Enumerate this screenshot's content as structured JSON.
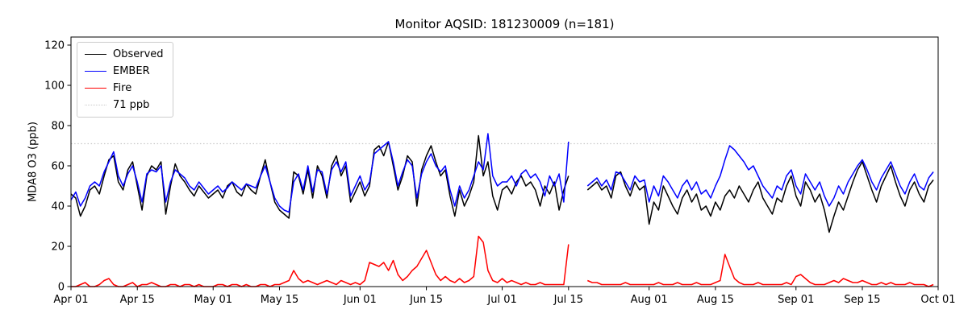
{
  "chart_data": {
    "type": "line",
    "title": "Monitor AQSID: 181230009 (n=181)",
    "xlabel": "",
    "ylabel": "MDA8 O3 (ppb)",
    "ylim": [
      0,
      124
    ],
    "yticks": [
      0,
      20,
      40,
      60,
      80,
      100,
      120
    ],
    "x_unit": "days since Apr 01",
    "xlim_days": [
      0,
      183
    ],
    "xticks": [
      {
        "label": "Apr 01",
        "day": 0
      },
      {
        "label": "Apr 15",
        "day": 14
      },
      {
        "label": "May 01",
        "day": 30
      },
      {
        "label": "May 15",
        "day": 44
      },
      {
        "label": "Jun 01",
        "day": 61
      },
      {
        "label": "Jun 15",
        "day": 75
      },
      {
        "label": "Jul 01",
        "day": 91
      },
      {
        "label": "Jul 15",
        "day": 105
      },
      {
        "label": "Aug 01",
        "day": 122
      },
      {
        "label": "Aug 15",
        "day": 136
      },
      {
        "label": "Sep 01",
        "day": 153
      },
      {
        "label": "Sep 15",
        "day": 167
      },
      {
        "label": "Oct 01",
        "day": 183
      }
    ],
    "grid": false,
    "legend_position": "upper left",
    "threshold": {
      "value": 71,
      "label": "71 ppb",
      "color": "#c8c8c8",
      "style": "dotted"
    },
    "legend": [
      {
        "label": "Observed",
        "color": "#000000",
        "style": "solid"
      },
      {
        "label": "EMBER",
        "color": "#0000ff",
        "style": "solid"
      },
      {
        "label": "Fire",
        "color": "#ff0000",
        "style": "solid"
      },
      {
        "label": "71 ppb",
        "color": "#c8c8c8",
        "style": "dotted"
      }
    ],
    "series": [
      {
        "name": "Observed",
        "color": "#000000",
        "values": [
          46,
          44,
          35,
          40,
          48,
          50,
          46,
          55,
          63,
          65,
          52,
          48,
          58,
          62,
          50,
          38,
          55,
          60,
          58,
          62,
          36,
          50,
          61,
          55,
          52,
          48,
          45,
          50,
          47,
          44,
          46,
          48,
          44,
          50,
          52,
          47,
          45,
          51,
          48,
          46,
          55,
          63,
          52,
          42,
          38,
          36,
          34,
          57,
          55,
          46,
          58,
          44,
          60,
          55,
          44,
          60,
          65,
          55,
          60,
          42,
          47,
          52,
          45,
          50,
          68,
          70,
          65,
          72,
          60,
          48,
          55,
          65,
          62,
          40,
          58,
          65,
          70,
          62,
          55,
          58,
          45,
          35,
          48,
          40,
          45,
          52,
          75,
          55,
          62,
          45,
          38,
          48,
          50,
          46,
          52,
          55,
          50,
          52,
          48,
          40,
          50,
          46,
          52,
          38,
          48,
          55,
          null,
          null,
          null,
          48,
          50,
          52,
          48,
          50,
          44,
          55,
          57,
          50,
          45,
          52,
          48,
          50,
          31,
          42,
          38,
          50,
          45,
          40,
          36,
          44,
          48,
          42,
          46,
          38,
          40,
          35,
          42,
          38,
          45,
          48,
          44,
          50,
          46,
          42,
          48,
          52,
          44,
          40,
          36,
          44,
          42,
          50,
          55,
          45,
          40,
          52,
          48,
          42,
          46,
          38,
          27,
          35,
          42,
          38,
          45,
          52,
          58,
          62,
          55,
          48,
          42,
          50,
          55,
          60,
          52,
          45,
          40,
          48,
          52,
          46,
          42,
          50,
          53
        ]
      },
      {
        "name": "EMBER",
        "color": "#0000ff",
        "values": [
          43,
          47,
          40,
          44,
          50,
          52,
          50,
          57,
          62,
          67,
          55,
          50,
          56,
          60,
          52,
          42,
          56,
          58,
          57,
          60,
          42,
          52,
          58,
          56,
          54,
          50,
          48,
          52,
          49,
          46,
          48,
          50,
          47,
          49,
          52,
          50,
          48,
          51,
          50,
          49,
          55,
          60,
          52,
          44,
          40,
          38,
          37,
          52,
          56,
          48,
          60,
          47,
          58,
          57,
          46,
          58,
          62,
          57,
          62,
          45,
          50,
          55,
          48,
          52,
          66,
          68,
          70,
          72,
          62,
          50,
          57,
          63,
          60,
          44,
          56,
          62,
          66,
          60,
          57,
          60,
          48,
          40,
          50,
          44,
          48,
          55,
          62,
          58,
          76,
          55,
          50,
          52,
          52,
          55,
          50,
          56,
          58,
          54,
          56,
          52,
          45,
          55,
          50,
          56,
          42,
          72,
          null,
          null,
          null,
          50,
          52,
          54,
          50,
          53,
          48,
          57,
          56,
          52,
          48,
          55,
          52,
          53,
          42,
          50,
          45,
          55,
          52,
          48,
          44,
          50,
          53,
          48,
          52,
          46,
          48,
          44,
          50,
          55,
          63,
          70,
          68,
          65,
          62,
          58,
          60,
          55,
          50,
          47,
          44,
          50,
          48,
          55,
          58,
          50,
          46,
          56,
          52,
          48,
          52,
          45,
          40,
          44,
          50,
          46,
          52,
          56,
          60,
          63,
          58,
          52,
          48,
          54,
          58,
          62,
          56,
          50,
          46,
          52,
          56,
          50,
          48,
          54,
          57
        ]
      },
      {
        "name": "Fire",
        "color": "#ff0000",
        "values": [
          0,
          0,
          1,
          2,
          0,
          0,
          1,
          3,
          4,
          1,
          0,
          0,
          1,
          2,
          0,
          1,
          1,
          2,
          1,
          0,
          0,
          1,
          1,
          0,
          1,
          1,
          0,
          1,
          0,
          0,
          0,
          1,
          1,
          0,
          1,
          1,
          0,
          1,
          0,
          0,
          1,
          1,
          0,
          1,
          1,
          2,
          3,
          8,
          4,
          2,
          3,
          2,
          1,
          2,
          3,
          2,
          1,
          3,
          2,
          1,
          2,
          1,
          3,
          12,
          11,
          10,
          12,
          8,
          13,
          6,
          3,
          5,
          8,
          10,
          14,
          18,
          12,
          6,
          3,
          5,
          3,
          2,
          4,
          2,
          3,
          5,
          25,
          22,
          8,
          3,
          2,
          4,
          2,
          3,
          2,
          1,
          2,
          1,
          1,
          2,
          1,
          1,
          1,
          1,
          1,
          21,
          null,
          null,
          null,
          3,
          2,
          2,
          1,
          1,
          1,
          1,
          1,
          2,
          1,
          1,
          1,
          1,
          1,
          1,
          2,
          1,
          1,
          1,
          2,
          1,
          1,
          1,
          2,
          1,
          1,
          1,
          2,
          3,
          16,
          10,
          4,
          2,
          1,
          1,
          1,
          2,
          1,
          1,
          1,
          1,
          1,
          2,
          1,
          5,
          6,
          4,
          2,
          1,
          1,
          1,
          2,
          3,
          2,
          4,
          3,
          2,
          2,
          3,
          2,
          1,
          1,
          2,
          1,
          2,
          1,
          1,
          1,
          2,
          1,
          1,
          1,
          0,
          1
        ]
      }
    ]
  }
}
